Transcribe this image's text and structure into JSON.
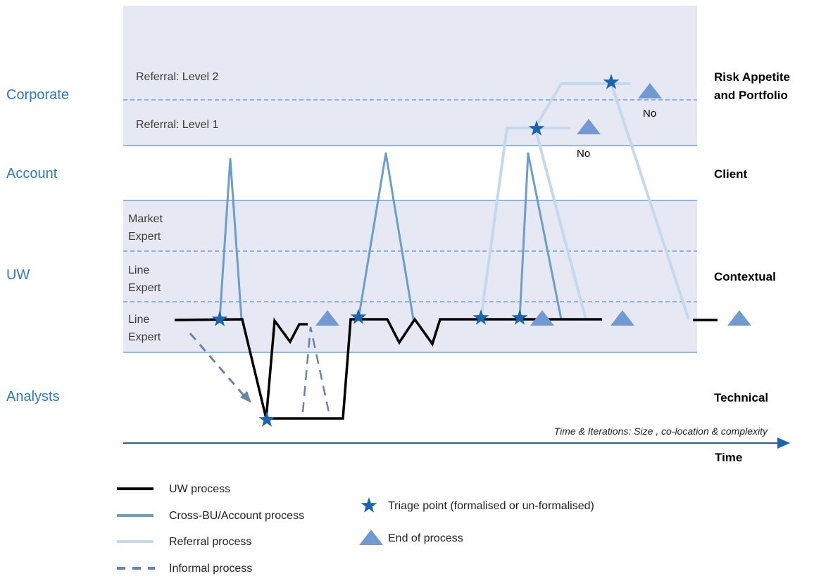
{
  "levels_left": {
    "corporate": "Corporate",
    "account": "Account",
    "uw": "UW",
    "analysts": "Analysts"
  },
  "levels_right": {
    "risk_appetite_line1": "Risk Appetite",
    "risk_appetite_line2": "and Portfolio",
    "client": "Client",
    "contextual": "Contextual",
    "technical": "Technical"
  },
  "sublevels": {
    "referral_level_2": "Referral: Level 2",
    "referral_level_1": "Referral: Level 1",
    "market_expert_line1": "Market",
    "market_expert_line2": "Expert",
    "line_expert_upper_line1": "Line",
    "line_expert_upper_line2": "Expert",
    "line_expert_lower_line1": "Line",
    "line_expert_lower_line2": "Expert"
  },
  "annotations": {
    "no_level2": "No",
    "no_level1": "No"
  },
  "axis": {
    "caption": "Time & Iterations: Size , co-location & complexity",
    "label": "Time"
  },
  "legend": {
    "uw_process": "UW process",
    "cross_bu_process": "Cross-BU/Account process",
    "referral_process": "Referral process",
    "informal_process": "Informal process",
    "triage_point": "Triage point (formalised or un-formalised)",
    "end_of_process": "End of process"
  },
  "colors": {
    "band_fill": "#e6e9f3",
    "band_border": "#3a78b8",
    "uw_process": "#000000",
    "cross_bu_process": "#6b9ecb",
    "referral_process": "#c5d9ea",
    "informal_process": "#6a83a8",
    "triage_star": "#1a65ad",
    "end_triangle": "#7399d1",
    "left_label": "#2b7bbf"
  },
  "icons": {
    "triage_point": "star-icon",
    "end_of_process": "triangle-icon"
  }
}
